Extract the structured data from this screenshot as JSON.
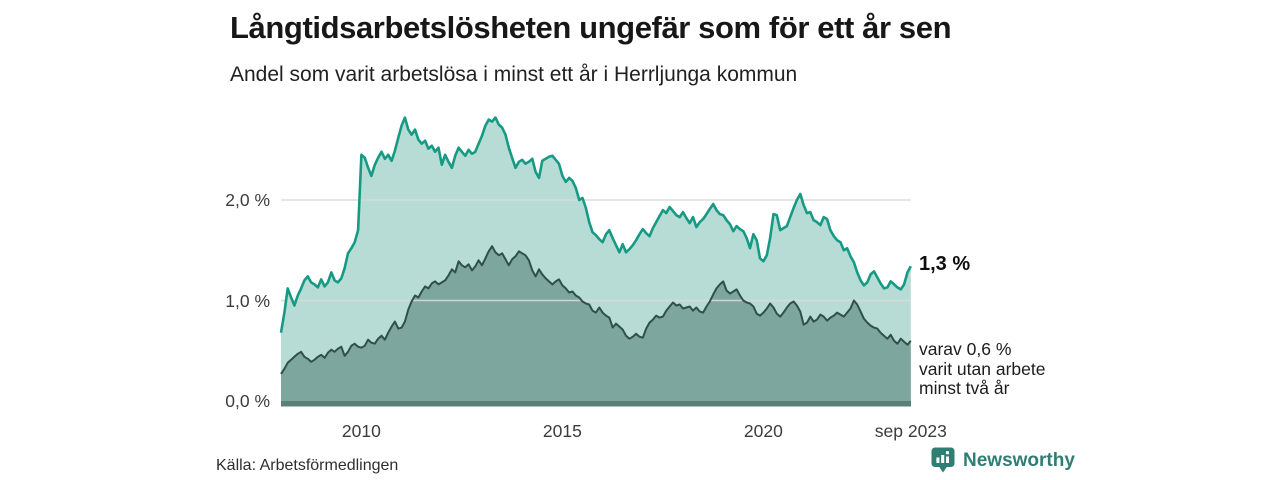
{
  "chart_data": {
    "type": "area",
    "title": "Långtidsarbetslösheten ungefär som för ett år sen",
    "subtitle": "Andel som varit arbetslösa i minst ett år i Herrljunga kommun",
    "xlabel": "",
    "ylabel": "",
    "ylim": [
      0,
      2.9
    ],
    "x_start": "2008-01",
    "x_end": "2023-09",
    "x_step_months": 1,
    "grid": true,
    "grid_color": "#d9d9d9",
    "baseline_color": "#5a8079",
    "legend_position": "end-of-line-labels",
    "y_ticks": [
      {
        "label": "0,0 %",
        "value": 0
      },
      {
        "label": "1,0 %",
        "value": 1
      },
      {
        "label": "2,0 %",
        "value": 2
      }
    ],
    "x_ticks": [
      {
        "label": "2010",
        "year": 2010
      },
      {
        "label": "2015",
        "year": 2015
      },
      {
        "label": "2020",
        "year": 2020
      },
      {
        "label": "sep 2023",
        "year": 2023.667
      }
    ],
    "series": [
      {
        "name": "Andel som varit arbetslösa i minst ett år",
        "color_fill": "#b7dcd5",
        "color_stroke": "#179a84",
        "end_label": "1,3 %",
        "end_value": 1.3,
        "values": [
          0.68,
          0.88,
          1.12,
          1.03,
          0.95,
          1.05,
          1.12,
          1.2,
          1.24,
          1.18,
          1.16,
          1.13,
          1.21,
          1.14,
          1.18,
          1.28,
          1.2,
          1.18,
          1.22,
          1.32,
          1.47,
          1.52,
          1.58,
          1.7,
          2.45,
          2.42,
          2.32,
          2.24,
          2.35,
          2.42,
          2.48,
          2.41,
          2.45,
          2.39,
          2.49,
          2.62,
          2.74,
          2.82,
          2.7,
          2.65,
          2.7,
          2.6,
          2.56,
          2.59,
          2.51,
          2.54,
          2.48,
          2.52,
          2.35,
          2.45,
          2.38,
          2.32,
          2.44,
          2.52,
          2.48,
          2.44,
          2.5,
          2.46,
          2.48,
          2.56,
          2.64,
          2.74,
          2.8,
          2.78,
          2.82,
          2.75,
          2.72,
          2.65,
          2.52,
          2.42,
          2.32,
          2.38,
          2.4,
          2.36,
          2.38,
          2.41,
          2.28,
          2.22,
          2.39,
          2.41,
          2.43,
          2.44,
          2.4,
          2.36,
          2.24,
          2.18,
          2.22,
          2.19,
          2.12,
          2.0,
          2.02,
          1.92,
          1.78,
          1.68,
          1.65,
          1.61,
          1.58,
          1.66,
          1.7,
          1.62,
          1.55,
          1.48,
          1.56,
          1.48,
          1.51,
          1.55,
          1.6,
          1.66,
          1.71,
          1.67,
          1.64,
          1.72,
          1.78,
          1.84,
          1.9,
          1.87,
          1.93,
          1.89,
          1.85,
          1.83,
          1.88,
          1.82,
          1.77,
          1.83,
          1.73,
          1.78,
          1.81,
          1.86,
          1.91,
          1.96,
          1.9,
          1.86,
          1.85,
          1.8,
          1.76,
          1.69,
          1.74,
          1.71,
          1.69,
          1.62,
          1.52,
          1.66,
          1.6,
          1.42,
          1.39,
          1.45,
          1.62,
          1.86,
          1.85,
          1.7,
          1.72,
          1.74,
          1.83,
          1.92,
          2.0,
          2.06,
          1.95,
          1.87,
          1.88,
          1.8,
          1.78,
          1.75,
          1.83,
          1.81,
          1.7,
          1.64,
          1.6,
          1.58,
          1.5,
          1.52,
          1.44,
          1.38,
          1.28,
          1.2,
          1.15,
          1.18,
          1.26,
          1.29,
          1.23,
          1.17,
          1.12,
          1.13,
          1.19,
          1.16,
          1.13,
          1.11,
          1.16,
          1.28,
          1.34
        ]
      },
      {
        "name": "varav utan arbete minst två år",
        "color_fill": "#7da69e",
        "color_stroke": "#2f5049",
        "end_label": "varav 0,6 % varit utan arbete minst två år",
        "end_label_lines": [
          "varav 0,6 %",
          "varit utan arbete",
          "minst två år"
        ],
        "end_value": 0.6,
        "values": [
          0.27,
          0.32,
          0.38,
          0.41,
          0.44,
          0.47,
          0.49,
          0.44,
          0.42,
          0.39,
          0.41,
          0.44,
          0.46,
          0.43,
          0.48,
          0.51,
          0.49,
          0.52,
          0.54,
          0.45,
          0.49,
          0.55,
          0.57,
          0.54,
          0.53,
          0.55,
          0.61,
          0.58,
          0.57,
          0.62,
          0.65,
          0.61,
          0.68,
          0.74,
          0.79,
          0.72,
          0.73,
          0.79,
          0.91,
          0.99,
          1.05,
          1.03,
          1.09,
          1.14,
          1.12,
          1.17,
          1.19,
          1.16,
          1.18,
          1.2,
          1.25,
          1.31,
          1.28,
          1.39,
          1.35,
          1.33,
          1.36,
          1.3,
          1.34,
          1.4,
          1.35,
          1.42,
          1.49,
          1.54,
          1.48,
          1.45,
          1.47,
          1.41,
          1.35,
          1.41,
          1.44,
          1.49,
          1.47,
          1.45,
          1.4,
          1.3,
          1.24,
          1.31,
          1.26,
          1.22,
          1.19,
          1.16,
          1.19,
          1.21,
          1.15,
          1.12,
          1.08,
          1.09,
          1.05,
          1.03,
          0.99,
          0.97,
          0.96,
          0.9,
          0.88,
          0.93,
          0.88,
          0.85,
          0.83,
          0.73,
          0.77,
          0.74,
          0.71,
          0.65,
          0.62,
          0.64,
          0.67,
          0.64,
          0.63,
          0.72,
          0.78,
          0.81,
          0.85,
          0.83,
          0.84,
          0.9,
          0.94,
          0.98,
          0.95,
          0.96,
          0.92,
          0.93,
          0.94,
          0.9,
          0.93,
          0.89,
          0.88,
          0.94,
          0.99,
          1.06,
          1.12,
          1.16,
          1.19,
          1.1,
          1.07,
          1.09,
          1.11,
          1.05,
          1.0,
          0.98,
          0.97,
          0.94,
          0.87,
          0.85,
          0.88,
          0.92,
          0.97,
          0.93,
          0.87,
          0.84,
          0.88,
          0.93,
          0.97,
          0.99,
          0.95,
          0.89,
          0.76,
          0.78,
          0.84,
          0.79,
          0.81,
          0.86,
          0.84,
          0.8,
          0.83,
          0.85,
          0.88,
          0.86,
          0.84,
          0.88,
          0.92,
          1.0,
          0.96,
          0.89,
          0.82,
          0.78,
          0.75,
          0.73,
          0.72,
          0.68,
          0.65,
          0.62,
          0.66,
          0.6,
          0.57,
          0.62,
          0.59,
          0.56,
          0.6
        ]
      }
    ]
  },
  "footer": {
    "source": "Källa: Arbetsförmedlingen",
    "brand": "Newsworthy",
    "brand_icon": "newsworthy-speech-bubble-bar-chart-icon",
    "brand_color": "#2f7e74"
  }
}
